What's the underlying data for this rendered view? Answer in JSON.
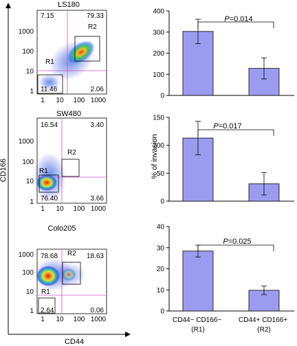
{
  "figure": {
    "flow_axis_x_label": "CD44",
    "flow_axis_y_label": "CD166",
    "bar_axis_y_label": "% of invasion",
    "bar_categories": [
      [
        "CD44− CD166−",
        "(R1)"
      ],
      [
        "CD44+ CD166+",
        "(R2)"
      ]
    ],
    "colors": {
      "bar_fill": "#9b9bf0",
      "quadrant_line": "#cc55cc",
      "dot_blue": "#2a3ad8"
    }
  },
  "chart_data": [
    {
      "type": "scatter",
      "title": "LS180",
      "xlabel": "CD44",
      "ylabel": "CD166",
      "log_scale": true,
      "ticks": [
        "1",
        "10",
        "100",
        "1000"
      ],
      "quadrants": {
        "top_left": "7.15",
        "top_right": "79.33",
        "bottom_left": "11.46",
        "bottom_right": "2.06"
      },
      "gates": [
        "R1",
        "R2"
      ]
    },
    {
      "type": "bar",
      "categories": [
        "CD44− CD166− (R1)",
        "CD44+ CD166+ (R2)"
      ],
      "values": [
        303,
        128
      ],
      "errors": [
        58,
        50
      ],
      "ylim": [
        0,
        400
      ],
      "yticks": [
        "0",
        "100",
        "200",
        "300",
        "400"
      ],
      "annotation": {
        "label": "P",
        "value": "=0.014"
      }
    },
    {
      "type": "scatter",
      "title": "SW480",
      "xlabel": "CD44",
      "ylabel": "CD166",
      "log_scale": true,
      "ticks": [
        "1",
        "10",
        "100",
        "1000"
      ],
      "quadrants": {
        "top_left": "16.54",
        "top_right": "3.40",
        "bottom_left": "76.40",
        "bottom_right": "3.66"
      },
      "gates": [
        "R1",
        "R2"
      ]
    },
    {
      "type": "bar",
      "ylabel": "% of invasion",
      "categories": [
        "CD44− CD166− (R1)",
        "CD44+ CD166+ (R2)"
      ],
      "values": [
        113,
        31
      ],
      "errors": [
        30,
        20
      ],
      "ylim": [
        0,
        150
      ],
      "yticks": [
        "0",
        "50",
        "100",
        "150"
      ],
      "annotation": {
        "label": "P",
        "value": "=0.017"
      }
    },
    {
      "type": "scatter",
      "title": "Colo205",
      "xlabel": "CD44",
      "ylabel": "CD166",
      "log_scale": true,
      "ticks": [
        "1",
        "10",
        "100",
        "1000"
      ],
      "quadrants": {
        "top_left": "78.68",
        "top_right": "18.63",
        "bottom_left": "2.64",
        "bottom_right": "0.06"
      },
      "gates": [
        "R1",
        "R2"
      ]
    },
    {
      "type": "bar",
      "categories": [
        "CD44− CD166− (R1)",
        "CD44+ CD166+ (R2)"
      ],
      "values": [
        28.4,
        9.8
      ],
      "errors": [
        2.8,
        2.0
      ],
      "ylim": [
        0,
        40
      ],
      "yticks": [
        "0",
        "10",
        "20",
        "30",
        "40"
      ],
      "annotation": {
        "label": "P",
        "value": "=0.025"
      }
    }
  ]
}
